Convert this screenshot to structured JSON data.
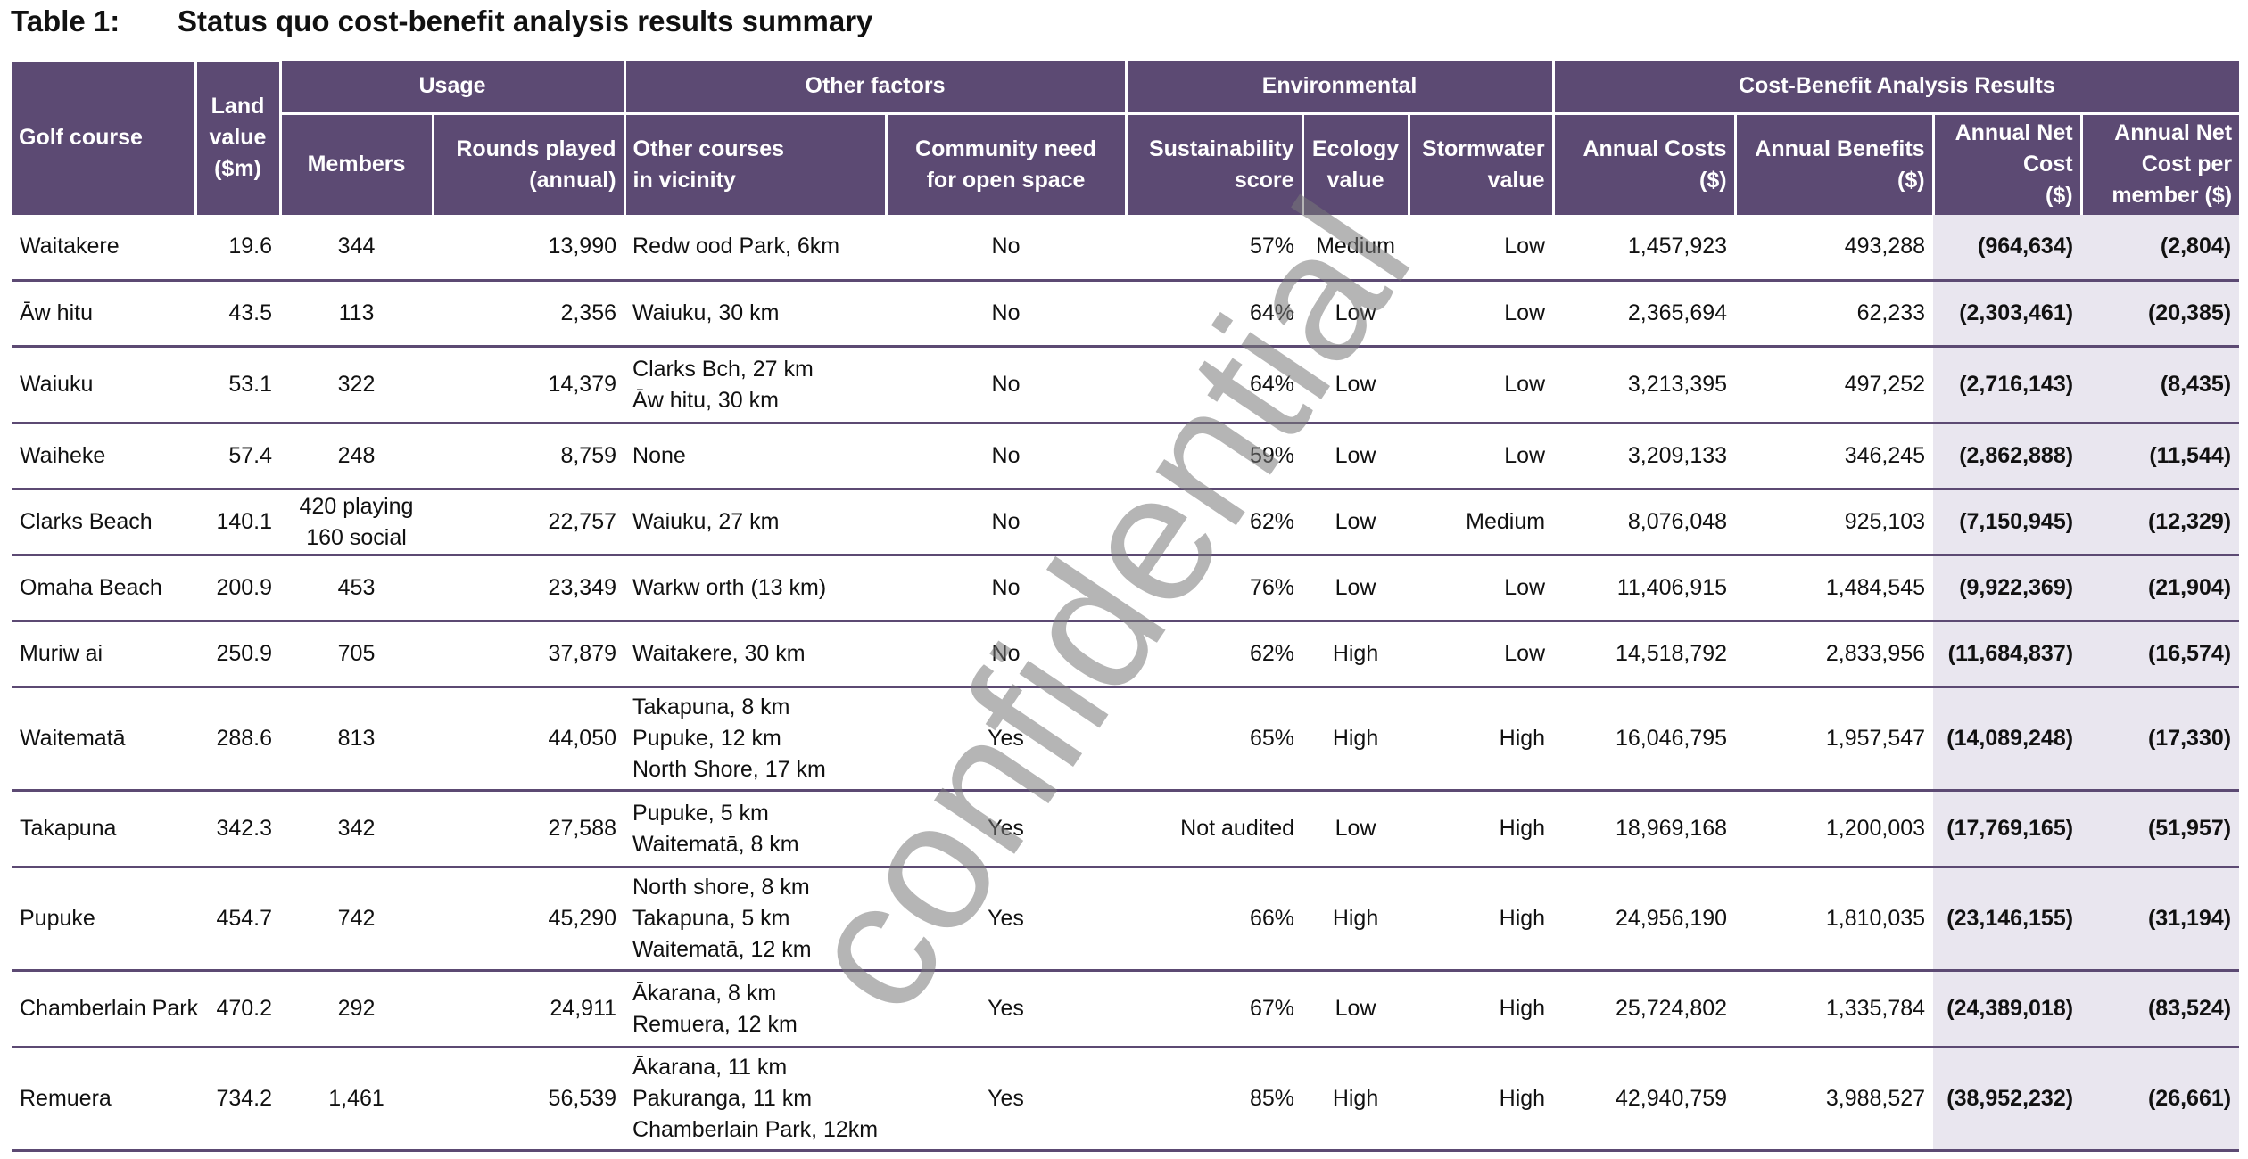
{
  "caption": {
    "number": "Table 1:",
    "title": "Status quo cost-benefit analysis results summary"
  },
  "groups": {
    "usage": "Usage",
    "other_factors": "Other factors",
    "environmental": "Environmental",
    "cba": "Cost-Benefit Analysis Results"
  },
  "headers": {
    "golf_course": "Golf course",
    "land_value": [
      "Land",
      "value",
      "($m)"
    ],
    "members": "Members",
    "rounds": [
      "Rounds played",
      "(annual)"
    ],
    "other_courses": [
      "Other courses",
      "in vicinity"
    ],
    "community": [
      "Community need",
      "for open space"
    ],
    "sustainability": [
      "Sustainability",
      "score"
    ],
    "ecology": [
      "Ecology",
      "value"
    ],
    "stormwater": [
      "Stormwater",
      "value"
    ],
    "annual_costs": [
      "Annual Costs",
      "($)"
    ],
    "annual_benefits": [
      "Annual Benefits",
      "($)"
    ],
    "net_cost": [
      "Annual Net",
      "Cost",
      "($)"
    ],
    "net_cost_member": [
      "Annual Net",
      "Cost per",
      "member ($)"
    ]
  },
  "rows": [
    {
      "course": "Waitakere",
      "land": "19.6",
      "members": [
        "344"
      ],
      "rounds": "13,990",
      "vicinity": [
        "Redw ood Park, 6km"
      ],
      "community": "No",
      "sustain": "57%",
      "ecology": "Medium",
      "storm": "Low",
      "costs": "1,457,923",
      "benefits": "493,288",
      "net": "(964,634)",
      "per_member": "(2,804)"
    },
    {
      "course": "Āw hitu",
      "land": "43.5",
      "members": [
        "113"
      ],
      "rounds": "2,356",
      "vicinity": [
        "Waiuku, 30 km"
      ],
      "community": "No",
      "sustain": "64%",
      "ecology": "Low",
      "storm": "Low",
      "costs": "2,365,694",
      "benefits": "62,233",
      "net": "(2,303,461)",
      "per_member": "(20,385)"
    },
    {
      "course": "Waiuku",
      "land": "53.1",
      "members": [
        "322"
      ],
      "rounds": "14,379",
      "vicinity": [
        "Clarks Bch, 27 km",
        "Āw hitu, 30 km"
      ],
      "community": "No",
      "sustain": "64%",
      "ecology": "Low",
      "storm": "Low",
      "costs": "3,213,395",
      "benefits": "497,252",
      "net": "(2,716,143)",
      "per_member": "(8,435)"
    },
    {
      "course": "Waiheke",
      "land": "57.4",
      "members": [
        "248"
      ],
      "rounds": "8,759",
      "vicinity": [
        "None"
      ],
      "community": "No",
      "sustain": "59%",
      "ecology": "Low",
      "storm": "Low",
      "costs": "3,209,133",
      "benefits": "346,245",
      "net": "(2,862,888)",
      "per_member": "(11,544)"
    },
    {
      "course": "Clarks Beach",
      "land": "140.1",
      "members": [
        "420 playing",
        "160 social"
      ],
      "rounds": "22,757",
      "vicinity": [
        "Waiuku, 27 km"
      ],
      "community": "No",
      "sustain": "62%",
      "ecology": "Low",
      "storm": "Medium",
      "costs": "8,076,048",
      "benefits": "925,103",
      "net": "(7,150,945)",
      "per_member": "(12,329)"
    },
    {
      "course": "Omaha Beach",
      "land": "200.9",
      "members": [
        "453"
      ],
      "rounds": "23,349",
      "vicinity": [
        "Warkw orth (13 km)"
      ],
      "community": "No",
      "sustain": "76%",
      "ecology": "Low",
      "storm": "Low",
      "costs": "11,406,915",
      "benefits": "1,484,545",
      "net": "(9,922,369)",
      "per_member": "(21,904)"
    },
    {
      "course": "Muriw ai",
      "land": "250.9",
      "members": [
        "705"
      ],
      "rounds": "37,879",
      "vicinity": [
        "Waitakere, 30 km"
      ],
      "community": "No",
      "sustain": "62%",
      "ecology": "High",
      "storm": "Low",
      "costs": "14,518,792",
      "benefits": "2,833,956",
      "net": "(11,684,837)",
      "per_member": "(16,574)"
    },
    {
      "course": "Waitematā",
      "land": "288.6",
      "members": [
        "813"
      ],
      "rounds": "44,050",
      "vicinity": [
        "Takapuna, 8 km",
        "Pupuke, 12 km",
        "North Shore, 17 km"
      ],
      "community": "Yes",
      "sustain": "65%",
      "ecology": "High",
      "storm": "High",
      "costs": "16,046,795",
      "benefits": "1,957,547",
      "net": "(14,089,248)",
      "per_member": "(17,330)"
    },
    {
      "course": "Takapuna",
      "land": "342.3",
      "members": [
        "342"
      ],
      "rounds": "27,588",
      "vicinity": [
        "Pupuke, 5 km",
        "Waitematā, 8 km"
      ],
      "community": "Yes",
      "sustain": "Not audited",
      "ecology": "Low",
      "storm": "High",
      "costs": "18,969,168",
      "benefits": "1,200,003",
      "net": "(17,769,165)",
      "per_member": "(51,957)"
    },
    {
      "course": "Pupuke",
      "land": "454.7",
      "members": [
        "742"
      ],
      "rounds": "45,290",
      "vicinity": [
        "North shore, 8 km",
        "Takapuna, 5 km",
        "Waitematā, 12 km"
      ],
      "community": "Yes",
      "sustain": "66%",
      "ecology": "High",
      "storm": "High",
      "costs": "24,956,190",
      "benefits": "1,810,035",
      "net": "(23,146,155)",
      "per_member": "(31,194)"
    },
    {
      "course": "Chamberlain Park",
      "land": "470.2",
      "members": [
        "292"
      ],
      "rounds": "24,911",
      "vicinity": [
        "Ākarana, 8 km",
        "Remuera, 12 km"
      ],
      "community": "Yes",
      "sustain": "67%",
      "ecology": "Low",
      "storm": "High",
      "costs": "25,724,802",
      "benefits": "1,335,784",
      "net": "(24,389,018)",
      "per_member": "(83,524)"
    },
    {
      "course": "Remuera",
      "land": "734.2",
      "members": [
        "1,461"
      ],
      "rounds": "56,539",
      "vicinity": [
        "Ākarana, 11 km",
        "Pakuranga, 11 km",
        "Chamberlain Park, 12km"
      ],
      "community": "Yes",
      "sustain": "85%",
      "ecology": "High",
      "storm": "High",
      "costs": "42,940,759",
      "benefits": "3,988,527",
      "net": "(38,952,232)",
      "per_member": "(26,661)"
    }
  ],
  "watermark": "confidential"
}
